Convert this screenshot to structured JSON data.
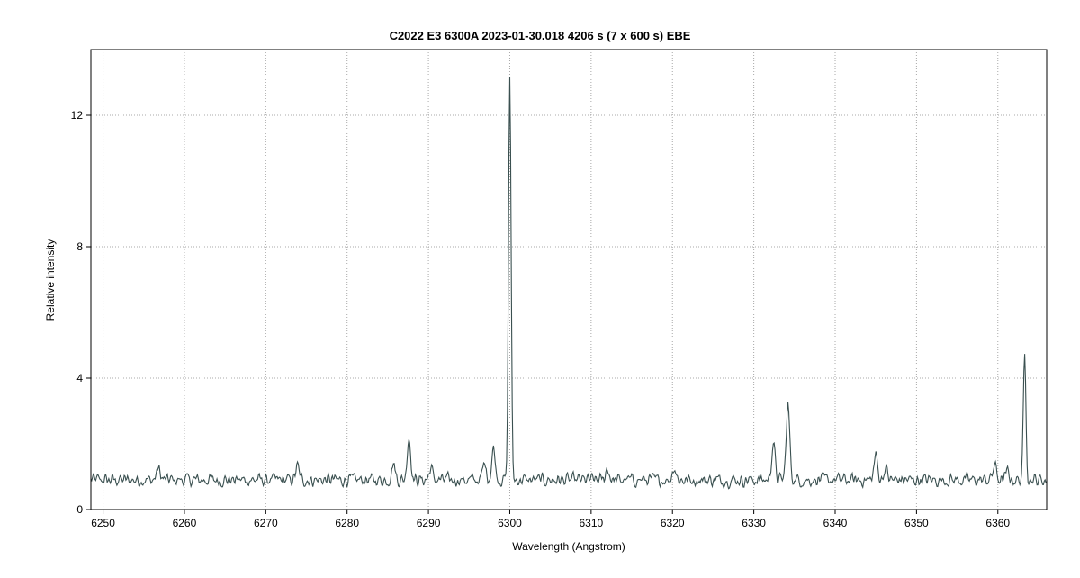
{
  "chart_data": {
    "type": "line",
    "title": "C2022 E3 6300A   2023-01-30.018   4206 s  (7 x 600 s)   EBE",
    "xlabel": "Wavelength (Angstrom)",
    "ylabel": "Relative intensity",
    "xlim": [
      6248.5,
      6366
    ],
    "ylim": [
      0,
      14
    ],
    "x_ticks": [
      6250,
      6260,
      6270,
      6280,
      6290,
      6300,
      6310,
      6320,
      6330,
      6340,
      6350,
      6360
    ],
    "y_ticks": [
      0,
      4,
      8,
      12
    ],
    "grid": true,
    "colors": {
      "line": "#3a5050",
      "grid": "#a8a8a8",
      "axis": "#000000"
    },
    "baseline": 0.9,
    "peaks": [
      {
        "x": 6256.8,
        "y": 1.25
      },
      {
        "x": 6273.9,
        "y": 1.3
      },
      {
        "x": 6285.7,
        "y": 1.4
      },
      {
        "x": 6287.6,
        "y": 2.2
      },
      {
        "x": 6290.3,
        "y": 1.25
      },
      {
        "x": 6296.9,
        "y": 1.4
      },
      {
        "x": 6298.0,
        "y": 1.85
      },
      {
        "x": 6300.0,
        "y": 13.2
      },
      {
        "x": 6312.0,
        "y": 1.25
      },
      {
        "x": 6320.2,
        "y": 1.3
      },
      {
        "x": 6332.4,
        "y": 2.0
      },
      {
        "x": 6334.2,
        "y": 3.15
      },
      {
        "x": 6345.0,
        "y": 1.65
      },
      {
        "x": 6346.2,
        "y": 1.25
      },
      {
        "x": 6359.6,
        "y": 1.35
      },
      {
        "x": 6361.2,
        "y": 1.15
      },
      {
        "x": 6363.3,
        "y": 4.75
      }
    ]
  }
}
